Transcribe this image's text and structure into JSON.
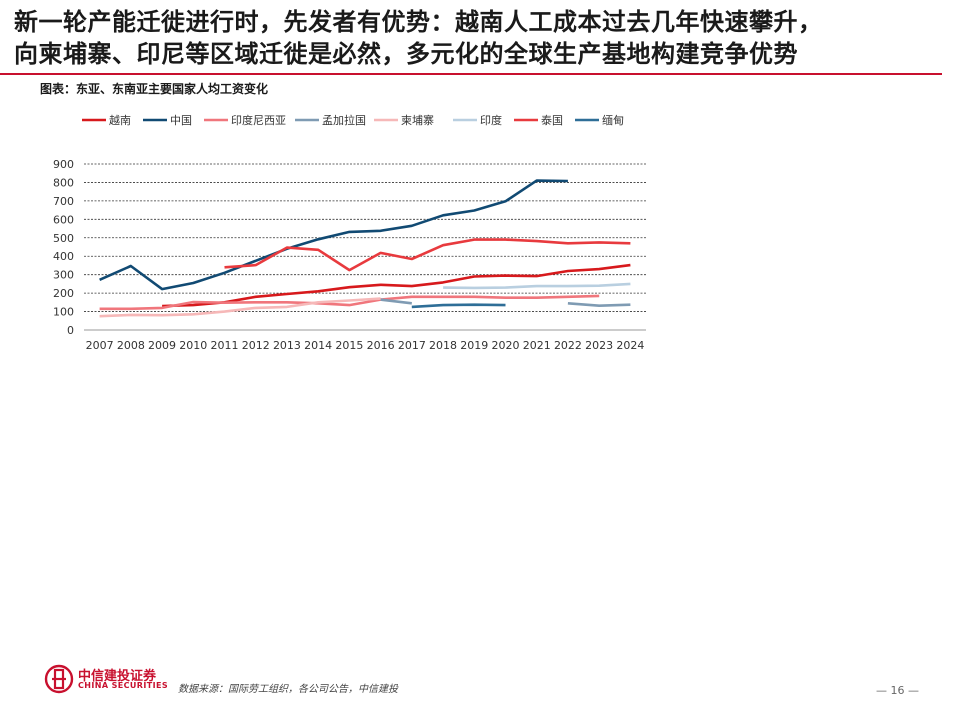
{
  "header": {
    "title_line1": "新一轮产能迁徙进行时，先发者有优势：越南人工成本过去几年快速攀升，",
    "title_line2": "向柬埔寨、印尼等区域迁徙是必然，多元化的全球生产基地构建竞争优势"
  },
  "chart_caption": "图表：东亚、东南亚主要国家人均工资变化",
  "chart_data": {
    "type": "line",
    "title": "",
    "xlabel": "",
    "ylabel": "",
    "x": [
      "2007",
      "2008",
      "2009",
      "2010",
      "2011",
      "2012",
      "2013",
      "2014",
      "2015",
      "2016",
      "2017",
      "2018",
      "2019",
      "2020",
      "2021",
      "2022",
      "2023",
      "2024"
    ],
    "ylim": [
      0,
      900
    ],
    "yticks": [
      "0",
      "100",
      "200",
      "300",
      "400",
      "500",
      "600",
      "700",
      "800",
      "900"
    ],
    "grid": "horizontal-dashed",
    "legend_position": "top",
    "series": [
      {
        "name": "越南",
        "color": "#d7191c",
        "values": [
          null,
          null,
          130,
          135,
          150,
          180,
          195,
          210,
          232,
          245,
          238,
          258,
          290,
          295,
          292,
          320,
          330,
          352
        ]
      },
      {
        "name": "中国",
        "color": "#114a73",
        "values": [
          272,
          347,
          222,
          255,
          310,
          375,
          440,
          492,
          532,
          538,
          565,
          622,
          648,
          698,
          810,
          808,
          null,
          null
        ]
      },
      {
        "name": "印度尼西亚",
        "color": "#f0767c",
        "values": [
          115,
          115,
          120,
          152,
          148,
          150,
          150,
          145,
          135,
          165,
          180,
          180,
          180,
          175,
          175,
          180,
          185,
          null
        ]
      },
      {
        "name": "孟加拉国",
        "color": "#7f9bb3",
        "values": [
          null,
          null,
          null,
          null,
          null,
          null,
          null,
          null,
          null,
          165,
          145,
          null,
          null,
          null,
          null,
          145,
          132,
          137
        ]
      },
      {
        "name": "柬埔寨",
        "color": "#f6b8b8",
        "values": [
          75,
          82,
          80,
          85,
          100,
          120,
          125,
          150,
          160,
          170,
          null,
          null,
          null,
          null,
          null,
          null,
          null,
          null
        ]
      },
      {
        "name": "印度",
        "color": "#b9cfe0",
        "values": [
          null,
          null,
          null,
          null,
          null,
          null,
          null,
          null,
          null,
          null,
          null,
          230,
          228,
          230,
          238,
          238,
          240,
          250
        ]
      },
      {
        "name": "泰国",
        "color": "#e83a3e",
        "values": [
          null,
          null,
          null,
          null,
          340,
          352,
          447,
          435,
          325,
          418,
          385,
          460,
          490,
          490,
          482,
          470,
          475,
          470
        ]
      },
      {
        "name": "缅甸",
        "color": "#2e6e97",
        "values": [
          null,
          null,
          null,
          null,
          null,
          null,
          null,
          null,
          null,
          null,
          125,
          135,
          137,
          135,
          null,
          null,
          null,
          null
        ]
      }
    ]
  },
  "footer": {
    "logo_cn": "中信建投证券",
    "logo_en": "CHINA SECURITIES",
    "source": "数据来源：国际劳工组织，各公司公告，中信建投",
    "page_number": "— 16 —"
  }
}
